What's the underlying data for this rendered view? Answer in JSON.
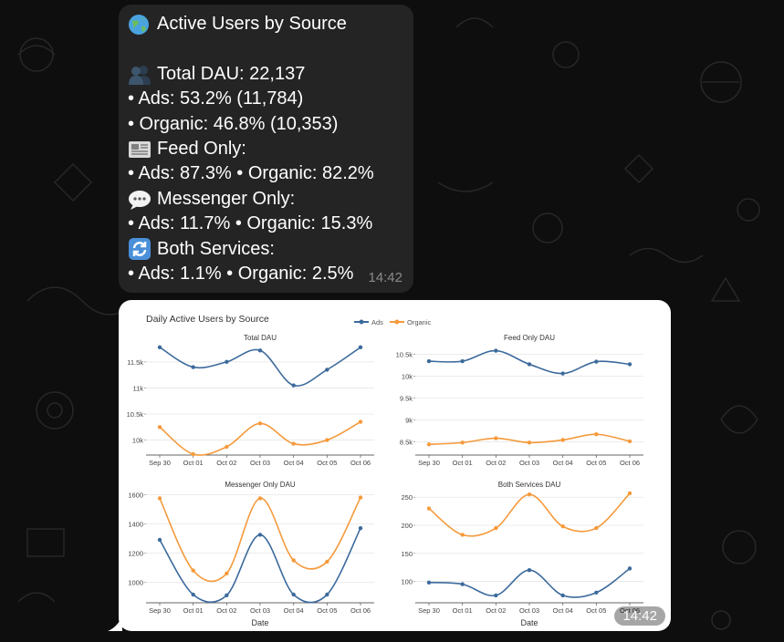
{
  "message": {
    "lines": [
      {
        "icon": "globe-icon",
        "text": "Active Users by Source"
      },
      {
        "icon": "",
        "text": ""
      },
      {
        "icon": "users-icon",
        "text": "Total DAU: 22,137"
      },
      {
        "icon": "",
        "text": "• Ads: 53.2% (11,784)"
      },
      {
        "icon": "",
        "text": "• Organic: 46.8% (10,353)"
      },
      {
        "icon": "newspaper-icon",
        "text": "Feed Only:"
      },
      {
        "icon": "",
        "text": "• Ads: 87.3% • Organic: 82.2%"
      },
      {
        "icon": "speech-bubble-icon",
        "text": "Messenger Only:"
      },
      {
        "icon": "",
        "text": "• Ads: 11.7% • Organic: 15.3%"
      },
      {
        "icon": "refresh-icon",
        "text": "Both Services:"
      },
      {
        "icon": "",
        "text": "• Ads: 1.1% • Organic: 2.5%"
      }
    ],
    "time": "14:42"
  },
  "image_message": {
    "time": "14:42"
  },
  "colors": {
    "bubble": "#242424",
    "background": "#0e0e0e",
    "ads": "#3c6a9c",
    "organic": "#f59a3c"
  },
  "chart_data": {
    "type": "line",
    "title": "Daily Active Users by Source",
    "legend": [
      "Ads",
      "Organic"
    ],
    "legend_position": "top",
    "x_categories": [
      "Sep 30",
      "Oct 01",
      "Oct 02",
      "Oct 03",
      "Oct 04",
      "Oct 05",
      "Oct 06"
    ],
    "xlabel": "Date",
    "subplots": [
      {
        "title": "Total DAU",
        "yticks": [
          "10k",
          "10.5k",
          "11k",
          "11.5k"
        ],
        "ylim": [
          9800,
          11900
        ],
        "series": [
          {
            "name": "Ads",
            "values": [
              11780,
              11400,
              11500,
              11720,
              11050,
              11350,
              11780
            ]
          },
          {
            "name": "Organic",
            "values": [
              10250,
              9730,
              9870,
              10320,
              9930,
              10000,
              10350
            ]
          }
        ]
      },
      {
        "title": "Feed Only DAU",
        "yticks": [
          "8.5k",
          "9k",
          "9.5k",
          "10k",
          "10.5k"
        ],
        "ylim": [
          8300,
          10800
        ],
        "series": [
          {
            "name": "Ads",
            "values": [
              10340,
              10340,
              10580,
              10270,
              10060,
              10330,
              10270
            ]
          },
          {
            "name": "Organic",
            "values": [
              8440,
              8480,
              8580,
              8480,
              8540,
              8670,
              8510
            ]
          }
        ]
      },
      {
        "title": "Messenger Only DAU",
        "yticks": [
          "1000",
          "1200",
          "1400",
          "1600"
        ],
        "ylim": [
          890,
          1640
        ],
        "series": [
          {
            "name": "Ads",
            "values": [
              1290,
              915,
              910,
              1325,
              915,
              915,
              1370
            ]
          },
          {
            "name": "Organic",
            "values": [
              1575,
              1080,
              1060,
              1575,
              1150,
              1140,
              1580
            ]
          }
        ]
      },
      {
        "title": "Both Services DAU",
        "yticks": [
          "100",
          "150",
          "200",
          "250"
        ],
        "ylim": [
          70,
          265
        ],
        "series": [
          {
            "name": "Ads",
            "values": [
              98,
              95,
              75,
              120,
              75,
              80,
              123
            ]
          },
          {
            "name": "Organic",
            "values": [
              230,
              183,
              195,
              255,
              198,
              195,
              257
            ]
          }
        ]
      }
    ]
  }
}
